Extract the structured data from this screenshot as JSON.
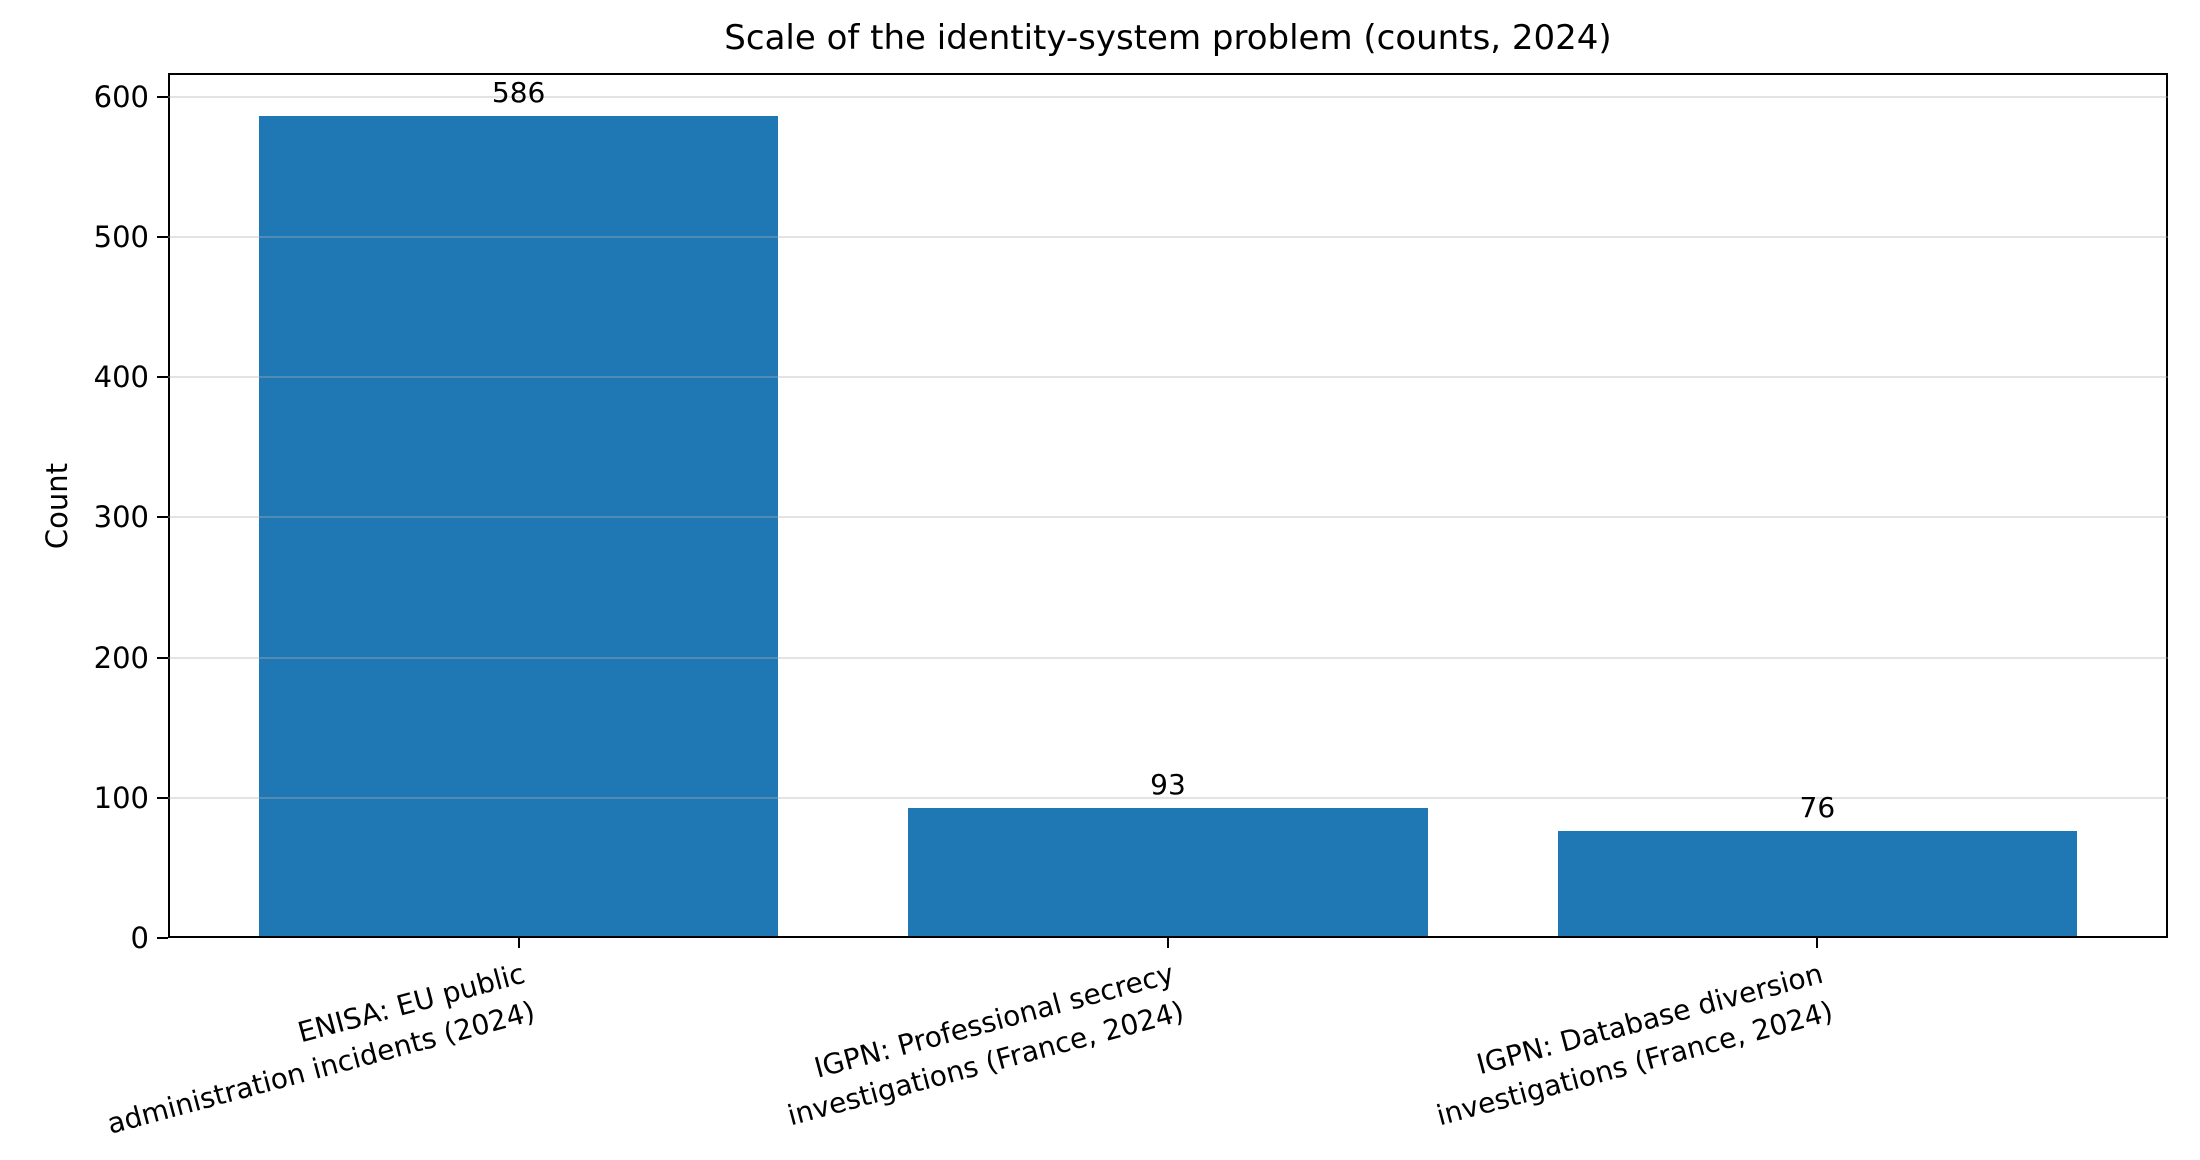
{
  "chart_data": {
    "type": "bar",
    "title": "Scale of the identity-system problem (counts, 2024)",
    "xlabel": "",
    "ylabel": "Count",
    "categories": [
      "ENISA: EU public\nadministration incidents (2024)",
      "IGPN: Professional secrecy\ninvestigations (France, 2024)",
      "IGPN: Database diversion\ninvestigations (France, 2024)"
    ],
    "values": [
      586,
      93,
      76
    ],
    "value_labels": [
      "586",
      "93",
      "76"
    ],
    "yticks": [
      0,
      100,
      200,
      300,
      400,
      500,
      600
    ],
    "ylim": [
      0,
      617
    ],
    "bar_color": "#1f77b4",
    "grid": "horizontal",
    "gridline_color": "#b0b0b0",
    "text_color": "#000000",
    "x_tick_label_rotation_deg": 15,
    "legend": "none"
  }
}
